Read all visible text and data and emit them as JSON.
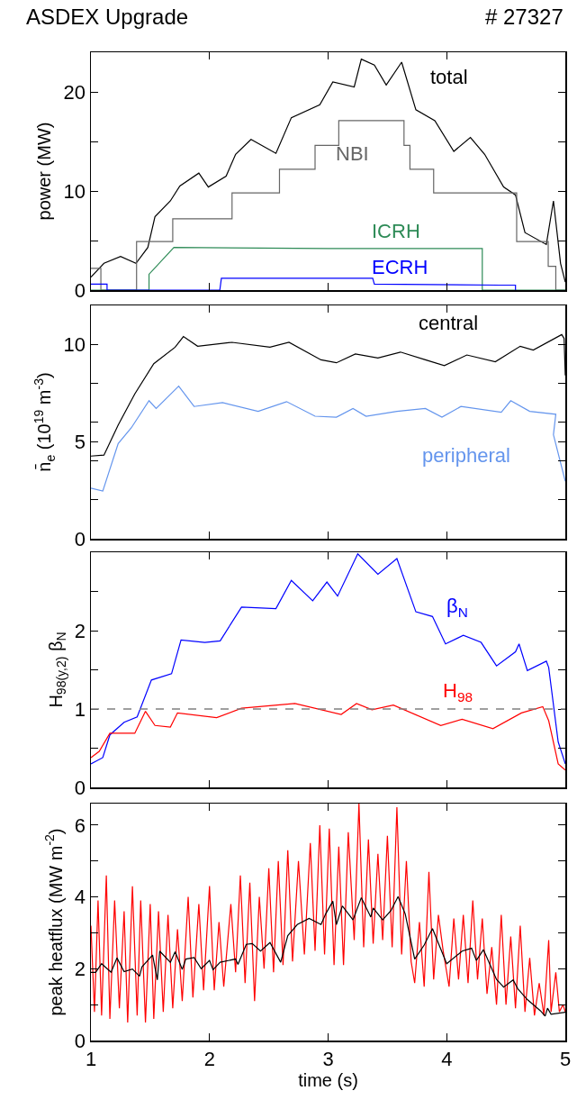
{
  "chart_data": [
    {
      "type": "line",
      "title": "ASDEX Upgrade",
      "subtitle": "# 27327",
      "ylabel": "power (MW)",
      "xlim": [
        1,
        5
      ],
      "xticks": [
        1,
        2,
        3,
        4,
        5
      ],
      "ylim": [
        0,
        24
      ],
      "yticks": [
        0,
        {
          "value": 5,
          "label": null
        },
        10,
        {
          "value": 15,
          "label": null
        },
        20
      ],
      "tick_labels": "y",
      "grid": false,
      "legend": "top right",
      "series": [
        {
          "name": "total",
          "color": "#000000",
          "x": [
            1.0,
            1.11,
            1.25,
            1.38,
            1.48,
            1.54,
            1.67,
            1.75,
            1.91,
            1.99,
            2.14,
            2.22,
            2.35,
            2.56,
            2.69,
            2.93,
            3.04,
            3.22,
            3.28,
            3.39,
            3.49,
            3.62,
            3.74,
            3.9,
            4.06,
            4.2,
            4.32,
            4.48,
            4.58,
            4.66,
            4.84,
            4.9,
            4.96,
            5.0
          ],
          "values": [
            1.3,
            2.7,
            3.4,
            2.7,
            4.3,
            7.4,
            9.0,
            10.5,
            11.8,
            10.4,
            11.5,
            13.7,
            15.2,
            13.8,
            17.4,
            18.7,
            21.0,
            20.5,
            23.3,
            22.7,
            20.7,
            23.0,
            18.2,
            17.1,
            14.0,
            15.4,
            13.7,
            10.4,
            9.6,
            5.8,
            4.6,
            9.0,
            2.7,
            0.8
          ]
        },
        {
          "name": "NBI",
          "type": "step",
          "color": "#666666",
          "x": [
            1.0,
            1.084,
            1.385,
            1.69,
            2.19,
            2.59,
            2.89,
            3.09,
            3.64,
            3.69,
            3.89,
            4.59,
            4.856,
            4.92,
            5.0
          ],
          "values": [
            2.2,
            0,
            4.9,
            7.2,
            9.8,
            12.2,
            14.6,
            17.1,
            14.6,
            12.2,
            9.8,
            4.9,
            2.4,
            0,
            0
          ]
        },
        {
          "name": "ICRH",
          "color": "#2e8b57",
          "x": [
            1.0,
            1.49,
            1.49,
            1.7,
            3.0,
            4.3,
            4.3,
            5.0
          ],
          "values": [
            0,
            0,
            1.6,
            4.3,
            4.2,
            4.2,
            0,
            0
          ]
        },
        {
          "name": "ECRH",
          "color": "#0000ff",
          "x": [
            1.0,
            1.136,
            1.136,
            2.087,
            2.1,
            3.376,
            3.39,
            4.45,
            4.58,
            4.58
          ],
          "values": [
            0.6,
            0.6,
            0,
            0,
            1.2,
            1.2,
            0.6,
            0.5,
            0.5,
            0
          ]
        }
      ]
    },
    {
      "type": "line",
      "ylabel": "n̄$_{e}$ (10$^{19}$ m$^{-3}$)",
      "xlim": [
        1,
        5
      ],
      "xticks": [
        1,
        2,
        3,
        4,
        5
      ],
      "ylim": [
        0,
        12
      ],
      "yticks": [
        0,
        {
          "value": 2,
          "label": null
        },
        {
          "value": 4,
          "label": null
        },
        5,
        {
          "value": 6,
          "label": null
        },
        {
          "value": 8,
          "label": null
        },
        10
      ],
      "tick_labels": "y",
      "grid": false,
      "legend": "right",
      "series": [
        {
          "name": "central",
          "color": "#000000",
          "x": [
            1.0,
            1.11,
            1.23,
            1.37,
            1.53,
            1.71,
            1.78,
            1.9,
            2.19,
            2.51,
            2.67,
            2.94,
            3.07,
            3.23,
            3.42,
            3.61,
            3.82,
            3.98,
            4.17,
            4.41,
            4.62,
            4.73,
            4.97,
            4.99,
            5.0
          ],
          "values": [
            4.25,
            4.3,
            5.85,
            7.45,
            9.0,
            9.85,
            10.4,
            9.9,
            10.1,
            9.85,
            10.1,
            9.2,
            9.05,
            9.5,
            9.3,
            9.6,
            9.2,
            8.9,
            9.45,
            9.1,
            9.9,
            9.7,
            10.5,
            10.3,
            8.4
          ]
        },
        {
          "name": "peripheral",
          "color": "#6495ed",
          "x": [
            1.0,
            1.1,
            1.23,
            1.34,
            1.49,
            1.55,
            1.74,
            1.87,
            2.11,
            2.41,
            2.65,
            2.89,
            3.07,
            3.21,
            3.32,
            3.58,
            3.82,
            3.96,
            4.12,
            4.46,
            4.54,
            4.7,
            4.92,
            4.9,
            5.0
          ],
          "values": [
            2.6,
            2.45,
            4.9,
            5.7,
            7.1,
            6.7,
            7.85,
            6.8,
            7.0,
            6.55,
            7.05,
            6.3,
            6.25,
            6.7,
            6.3,
            6.55,
            6.7,
            6.25,
            6.8,
            6.5,
            7.1,
            6.55,
            6.4,
            5.35,
            2.95
          ]
        }
      ]
    },
    {
      "type": "line",
      "ylabel": "H$_{98(y,2)}$ β$_{N}$",
      "xlim": [
        1,
        5
      ],
      "xticks": [
        1,
        2,
        3,
        4,
        5
      ],
      "ylim": [
        0,
        3
      ],
      "yticks": [
        0,
        {
          "value": 0.5,
          "label": null
        },
        1,
        {
          "value": 1.5,
          "label": null
        },
        2,
        {
          "value": 2.5,
          "label": null
        }
      ],
      "tick_labels": "y",
      "grid": false,
      "legend": "right",
      "ref_lines": [
        {
          "axis": "y",
          "value": 1,
          "color": "#808080",
          "line_style": "dashed"
        }
      ],
      "series": [
        {
          "name": "β$_{N}$",
          "color": "#0000ff",
          "x": [
            1.0,
            1.1,
            1.16,
            1.28,
            1.39,
            1.51,
            1.68,
            1.76,
            1.96,
            2.09,
            2.27,
            2.56,
            2.69,
            2.87,
            2.99,
            3.08,
            3.25,
            3.42,
            3.58,
            3.74,
            3.88,
            3.99,
            4.14,
            4.29,
            4.42,
            4.58,
            4.61,
            4.68,
            4.84,
            4.86,
            4.94,
            5.0
          ],
          "values": [
            0.3,
            0.38,
            0.67,
            0.83,
            0.9,
            1.37,
            1.45,
            1.88,
            1.85,
            1.87,
            2.3,
            2.28,
            2.64,
            2.38,
            2.62,
            2.44,
            2.98,
            2.72,
            2.92,
            2.24,
            2.18,
            1.83,
            1.94,
            1.85,
            1.55,
            1.73,
            1.83,
            1.49,
            1.61,
            1.53,
            0.58,
            0.3
          ]
        },
        {
          "name": "H$_{98}$",
          "color": "#ff0000",
          "x": [
            1.0,
            1.07,
            1.16,
            1.37,
            1.46,
            1.54,
            1.67,
            1.73,
            2.06,
            2.27,
            2.72,
            3.11,
            3.24,
            3.37,
            3.55,
            3.95,
            4.13,
            4.39,
            4.63,
            4.81,
            4.86,
            4.94,
            5.0
          ],
          "values": [
            0.38,
            0.46,
            0.69,
            0.69,
            0.97,
            0.79,
            0.77,
            0.95,
            0.89,
            1.01,
            1.07,
            0.93,
            1.07,
            0.99,
            1.05,
            0.79,
            0.87,
            0.75,
            0.95,
            1.03,
            0.85,
            0.3,
            0.22
          ]
        }
      ]
    },
    {
      "type": "line",
      "xlabel": "time (s)",
      "ylabel": "peak heatflux (MW m$^{-2}$)",
      "xlim": [
        1,
        5
      ],
      "xticks": [
        1,
        2,
        3,
        4,
        5
      ],
      "ylim": [
        0,
        6.6
      ],
      "yticks": [
        0,
        {
          "value": 1,
          "label": null
        },
        2,
        {
          "value": 3,
          "label": null
        },
        4,
        {
          "value": 5,
          "label": null
        },
        6
      ],
      "grid": false,
      "series": [
        {
          "color": "#ff0000",
          "x": [
            1.0,
            1.03,
            1.06,
            1.09,
            1.13,
            1.16,
            1.2,
            1.24,
            1.28,
            1.31,
            1.35,
            1.39,
            1.42,
            1.46,
            1.5,
            1.53,
            1.57,
            1.61,
            1.65,
            1.69,
            1.73,
            1.77,
            1.82,
            1.86,
            1.91,
            1.95,
            2.0,
            2.04,
            2.08,
            2.12,
            2.18,
            2.22,
            2.26,
            2.3,
            2.34,
            2.38,
            2.42,
            2.46,
            2.5,
            2.54,
            2.58,
            2.62,
            2.66,
            2.7,
            2.75,
            2.8,
            2.85,
            2.89,
            2.93,
            2.97,
            3.01,
            3.05,
            3.09,
            3.13,
            3.17,
            3.22,
            3.26,
            3.3,
            3.34,
            3.38,
            3.42,
            3.46,
            3.5,
            3.54,
            3.58,
            3.62,
            3.66,
            3.7,
            3.73,
            3.77,
            3.81,
            3.85,
            3.89,
            3.93,
            3.97,
            4.02,
            4.06,
            4.1,
            4.14,
            4.18,
            4.22,
            4.26,
            4.3,
            4.34,
            4.38,
            4.42,
            4.46,
            4.5,
            4.54,
            4.58,
            4.62,
            4.66,
            4.7,
            4.74,
            4.78,
            4.82,
            4.86,
            4.88,
            4.92,
            4.95,
            4.98,
            5.0
          ],
          "values": [
            3.2,
            0.8,
            3.9,
            0.7,
            4.6,
            0.6,
            3.9,
            0.9,
            3.6,
            0.5,
            4.3,
            0.7,
            3.9,
            0.5,
            3.8,
            0.6,
            3.6,
            0.8,
            3.5,
            0.9,
            3.1,
            1.1,
            4.0,
            1.2,
            3.8,
            1.4,
            4.3,
            1.4,
            3.3,
            1.5,
            3.8,
            1.9,
            4.6,
            1.6,
            4.4,
            1.1,
            4.0,
            2.0,
            4.8,
            1.9,
            5.0,
            2.1,
            5.3,
            2.2,
            5.0,
            2.4,
            5.5,
            2.5,
            6.0,
            2.4,
            5.9,
            2.1,
            5.4,
            2.1,
            5.8,
            2.8,
            6.6,
            2.6,
            5.6,
            2.7,
            5.2,
            2.8,
            5.7,
            2.6,
            6.5,
            2.4,
            5.0,
            2.2,
            1.6,
            3.3,
            1.5,
            4.7,
            1.7,
            3.5,
            2.5,
            1.5,
            3.4,
            1.7,
            3.5,
            1.6,
            3.9,
            1.7,
            3.4,
            1.3,
            2.6,
            1.0,
            3.5,
            1.0,
            2.9,
            0.9,
            3.2,
            0.8,
            2.3,
            0.7,
            1.6,
            0.7,
            2.8,
            0.8,
            1.9,
            0.8,
            1.0,
            0.8
          ]
        },
        {
          "color": "#000000",
          "x": [
            1.0,
            1.04,
            1.09,
            1.17,
            1.22,
            1.28,
            1.35,
            1.41,
            1.43,
            1.52,
            1.56,
            1.58,
            1.67,
            1.71,
            1.77,
            1.8,
            1.87,
            1.93,
            2.0,
            2.03,
            2.09,
            2.22,
            2.24,
            2.31,
            2.36,
            2.43,
            2.51,
            2.6,
            2.66,
            2.74,
            2.84,
            2.94,
            2.98,
            3.04,
            3.07,
            3.12,
            3.21,
            3.28,
            3.36,
            3.38,
            3.46,
            3.53,
            3.59,
            3.65,
            3.73,
            3.81,
            3.88,
            4.0,
            4.13,
            4.21,
            4.25,
            4.31,
            4.42,
            4.48,
            4.56,
            4.6,
            4.68,
            4.79,
            4.83,
            4.85,
            4.88,
            5.0
          ],
          "values": [
            1.9,
            1.9,
            2.14,
            1.9,
            2.3,
            1.92,
            1.99,
            1.79,
            2.05,
            2.38,
            1.69,
            2.49,
            2.18,
            2.47,
            1.98,
            2.27,
            2.31,
            2.0,
            2.23,
            1.97,
            2.18,
            2.27,
            2.12,
            2.68,
            2.7,
            2.49,
            2.73,
            2.18,
            2.92,
            3.23,
            3.4,
            3.23,
            3.53,
            3.88,
            3.23,
            3.75,
            3.36,
            3.98,
            3.44,
            3.69,
            3.36,
            3.62,
            4.01,
            3.53,
            2.27,
            2.66,
            3.12,
            2.14,
            2.49,
            2.57,
            2.23,
            2.53,
            1.7,
            1.49,
            1.69,
            1.44,
            1.14,
            0.83,
            0.68,
            0.9,
            0.73,
            0.79
          ]
        }
      ]
    }
  ]
}
